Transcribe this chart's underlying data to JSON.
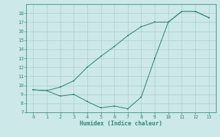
{
  "title": "",
  "xlabel": "Humidex (Indice chaleur)",
  "x_upper_line": [
    0,
    1,
    2,
    3,
    4,
    5,
    6,
    7,
    8,
    9,
    10,
    11,
    12,
    13
  ],
  "y_upper_line": [
    9.5,
    9.4,
    9.8,
    10.5,
    12.0,
    13.2,
    14.3,
    15.5,
    16.5,
    17.0,
    17.0,
    18.2,
    18.2,
    17.5
  ],
  "x_lower_line": [
    0,
    1,
    2,
    3,
    4,
    5,
    6,
    7,
    8,
    9,
    10,
    11,
    12,
    13
  ],
  "y_lower_line": [
    9.5,
    9.4,
    8.8,
    9.0,
    8.2,
    7.5,
    7.7,
    7.4,
    8.7,
    13.0,
    17.0,
    18.2,
    18.2,
    17.5
  ],
  "line_color": "#2e8b6e",
  "bg_color": "#cce8e8",
  "grid_color": "#aacccc",
  "ylim": [
    7,
    19
  ],
  "xlim": [
    -0.5,
    13.5
  ],
  "yticks": [
    7,
    8,
    9,
    10,
    11,
    12,
    13,
    14,
    15,
    16,
    17,
    18
  ],
  "xticks": [
    0,
    1,
    2,
    3,
    4,
    5,
    6,
    7,
    8,
    9,
    10,
    11,
    12,
    13
  ],
  "tick_fontsize": 5.0,
  "xlabel_fontsize": 6.0
}
